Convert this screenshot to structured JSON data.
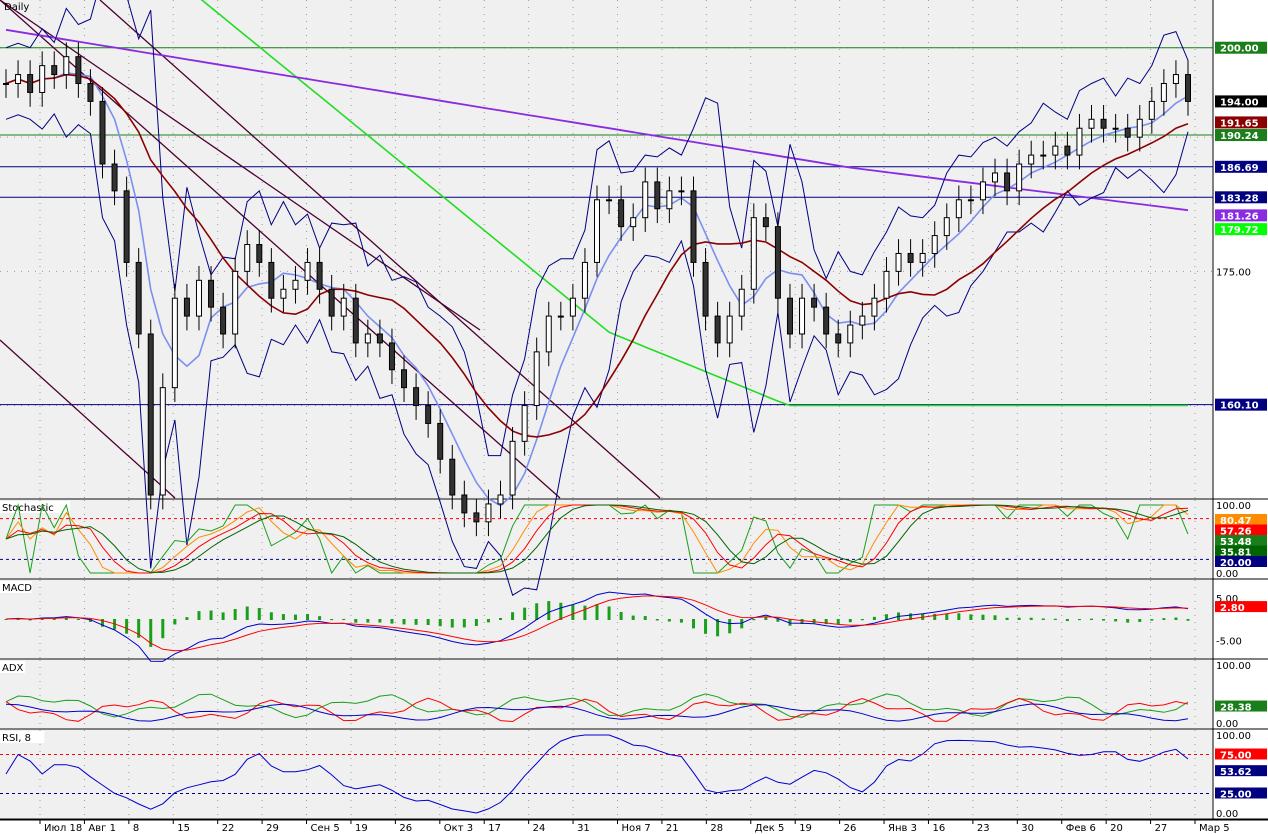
{
  "chart_data": [
    {
      "type": "candlestick",
      "title": "",
      "symbol": "Daily",
      "ylim": [
        150,
        205
      ],
      "y_ticks": [
        175.0
      ],
      "price_labels": [
        {
          "value": 200.0,
          "color": "#1a7f1a",
          "text": "200.00"
        },
        {
          "value": 194.0,
          "color": "#000000",
          "text": "194.00"
        },
        {
          "value": 191.65,
          "color": "#8b0000",
          "text": "191.65"
        },
        {
          "value": 190.24,
          "color": "#1a7f1a",
          "text": "190.24"
        },
        {
          "value": 186.69,
          "color": "#000080",
          "text": "186.69"
        },
        {
          "value": 183.28,
          "color": "#000080",
          "text": "183.28"
        },
        {
          "value": 181.26,
          "color": "#8a2be2",
          "text": "181.26"
        },
        {
          "value": 179.72,
          "color": "#00ff00",
          "text": "179.72"
        },
        {
          "value": 160.1,
          "color": "#000080",
          "text": "160.10"
        }
      ],
      "horizontal_lines": [
        {
          "value": 200.0,
          "color": "#1a7f1a"
        },
        {
          "value": 190.24,
          "color": "#1a7f1a"
        },
        {
          "value": 186.69,
          "color": "#000080"
        },
        {
          "value": 183.28,
          "color": "#000080"
        },
        {
          "value": 160.1,
          "color": "#000080"
        }
      ],
      "x_labels": [
        "Июл 18",
        "Авг 1",
        "8",
        "15",
        "22",
        "29",
        "Сен 5",
        "19",
        "26",
        "Окт 3",
        "17",
        "24",
        "31",
        "Ноя 7",
        "21",
        "28",
        "Дек 5",
        "19",
        "26",
        "Янв 3",
        "16",
        "23",
        "30",
        "Фев 6",
        "20",
        "27",
        "Мар 5"
      ],
      "close_series": [
        196,
        197,
        195,
        198,
        197,
        199,
        196,
        194,
        187,
        184,
        176,
        168,
        150,
        162,
        172,
        170,
        174,
        171,
        168,
        175,
        178,
        176,
        172,
        173,
        174,
        176,
        173,
        170,
        172,
        167,
        168,
        167,
        164,
        162,
        160,
        158,
        154,
        150,
        148,
        147,
        149,
        150,
        156,
        160,
        166,
        170,
        170,
        172,
        176,
        183,
        183,
        180,
        181,
        185,
        182,
        184,
        184,
        176,
        170,
        167,
        170,
        173,
        181,
        180,
        172,
        168,
        172,
        171,
        168,
        167,
        169,
        170,
        172,
        175,
        177,
        176,
        177,
        179,
        181,
        183,
        183,
        185,
        186,
        184,
        187,
        188,
        188,
        189,
        188,
        191,
        192,
        191,
        191,
        190,
        192,
        194,
        196,
        197,
        194
      ]
    },
    {
      "type": "line",
      "title": "Stochastic",
      "ylim": [
        0,
        100
      ],
      "y_ticks": [
        100.0,
        0.0
      ],
      "levels": [
        80,
        20
      ],
      "value_labels": [
        {
          "text": "80.47",
          "color": "#ff8c00"
        },
        {
          "text": "57.26",
          "color": "#ff0000"
        },
        {
          "text": "53.48",
          "color": "#1a7f1a"
        },
        {
          "text": "35.81",
          "color": "#006400"
        },
        {
          "text": "20.00",
          "color": "#000080"
        }
      ]
    },
    {
      "type": "histogram",
      "title": "MACD",
      "ylim": [
        -8,
        8
      ],
      "y_ticks": [
        5.0,
        -5.0
      ],
      "value_labels": [
        {
          "text": "2.80",
          "color": "#ff0000"
        }
      ]
    },
    {
      "type": "line",
      "title": "ADX",
      "ylim": [
        0,
        100
      ],
      "y_ticks": [
        100.0,
        0.0
      ],
      "value_labels": [
        {
          "text": "28.38",
          "color": "#1a7f1a"
        }
      ]
    },
    {
      "type": "line",
      "title": "RSI, 8",
      "ylim": [
        0,
        100
      ],
      "y_ticks": [
        100.0,
        0.0
      ],
      "levels": [
        75,
        25
      ],
      "value_labels": [
        {
          "text": "75.00",
          "color": "#ff0000"
        },
        {
          "text": "53.62",
          "color": "#000080"
        },
        {
          "text": "25.00",
          "color": "#000080"
        }
      ]
    }
  ]
}
